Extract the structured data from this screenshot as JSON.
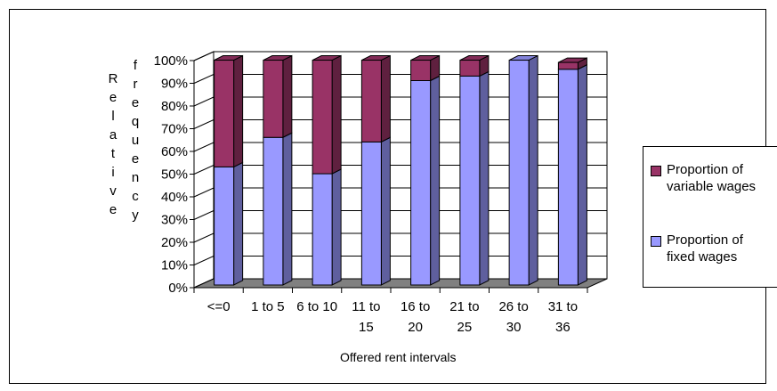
{
  "chart_data": {
    "type": "bar",
    "stacked": true,
    "three_d": true,
    "categories": [
      "<=0",
      "1 to 5",
      "6 to 10",
      "11 to\n15",
      "16 to\n20",
      "21 to\n25",
      "26 to\n30",
      "31 to\n36"
    ],
    "series": [
      {
        "name": "Proportion of fixed wages",
        "color": "#9999ff",
        "values": [
          52,
          65,
          49,
          63,
          90,
          92,
          99,
          95
        ]
      },
      {
        "name": "Proportion of variable wages",
        "color": "#993366",
        "values": [
          47,
          34,
          50,
          36,
          9,
          7,
          0,
          3
        ]
      }
    ],
    "ylabel_letters": [
      "R",
      "e",
      "l",
      "a",
      "t",
      "i",
      "v",
      "e",
      "f",
      "r",
      "e",
      "q",
      "u",
      "e",
      "n",
      "c",
      "y"
    ],
    "xlabel": "Offered rent intervals",
    "yticks": [
      "0%",
      "10%",
      "20%",
      "30%",
      "40%",
      "50%",
      "60%",
      "70%",
      "80%",
      "90%",
      "100%"
    ],
    "ylim": [
      0,
      100
    ],
    "grid": true,
    "legend_position": "right",
    "floor_color": "#808080",
    "wall_color": "#ffffff"
  }
}
